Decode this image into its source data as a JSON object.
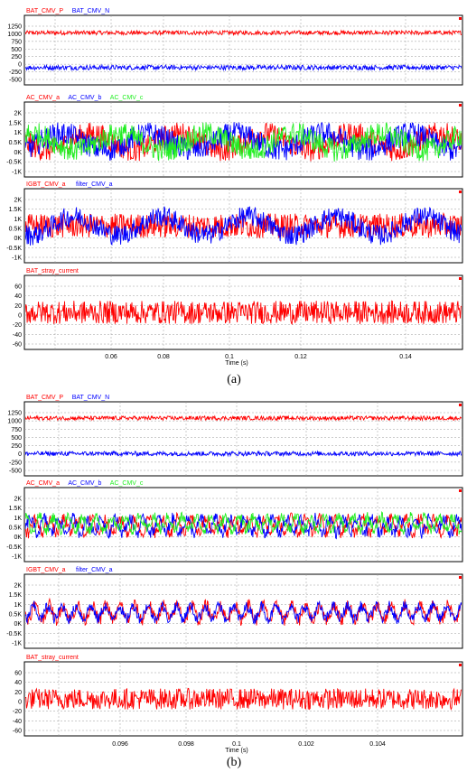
{
  "colors": {
    "red": "#ff0000",
    "blue": "#0000ff",
    "green": "#22ee22"
  },
  "figures": [
    {
      "caption": "(a)",
      "x_label": "Time (s)",
      "x_ticks": [
        "0.06",
        "0.08",
        "0.1",
        "0.12",
        "0.14"
      ]
    },
    {
      "caption": "(b)",
      "x_label": "Time (s)",
      "x_ticks": [
        "0.096",
        "0.098",
        "0.1",
        "0.102",
        "0.104"
      ]
    }
  ],
  "chart_data": [
    {
      "type": "line",
      "figure": "(a)",
      "panel": 1,
      "xlim": [
        0.05,
        0.15
      ],
      "ylim": [
        -500,
        1500
      ],
      "y_ticks": [
        "1250",
        "1000",
        "750",
        "500",
        "250",
        "0",
        "-250",
        "-500"
      ],
      "series": [
        {
          "name": "BAT_CMV_P",
          "color": "red",
          "center": 1000,
          "amplitude": 60,
          "envelope_amp": 0,
          "period": 0.02
        },
        {
          "name": "BAT_CMV_N",
          "color": "blue",
          "center": 0,
          "amplitude": 70,
          "envelope_amp": 0,
          "period": 0.02
        }
      ]
    },
    {
      "type": "line",
      "figure": "(a)",
      "panel": 2,
      "xlim": [
        0.05,
        0.15
      ],
      "ylim": [
        -1000,
        2200
      ],
      "y_ticks": [
        "2K",
        "1.5K",
        "1K",
        "0.5K",
        "0K",
        "-0.5K",
        "-1K"
      ],
      "series": [
        {
          "name": "AC_CMV_a",
          "color": "red",
          "center": 500,
          "amplitude": 500,
          "envelope_amp": 350,
          "period": 0.02,
          "phase": 0
        },
        {
          "name": "AC_CMV_b",
          "color": "blue",
          "center": 500,
          "amplitude": 500,
          "envelope_amp": 350,
          "period": 0.02,
          "phase": 2.094
        },
        {
          "name": "AC_CMV_c",
          "color": "green",
          "center": 500,
          "amplitude": 500,
          "envelope_amp": 350,
          "period": 0.02,
          "phase": 4.189
        }
      ]
    },
    {
      "type": "line",
      "figure": "(a)",
      "panel": 3,
      "xlim": [
        0.05,
        0.15
      ],
      "ylim": [
        -1000,
        2000
      ],
      "y_ticks": [
        "2K",
        "1.5K",
        "1K",
        "0.5K",
        "0K",
        "-0.5K",
        "-1K"
      ],
      "series": [
        {
          "name": "IGBT_CMV_a",
          "color": "red",
          "center": 500,
          "amplitude": 500,
          "envelope_amp": 0,
          "period": 0.02
        },
        {
          "name": "filter_CMV_a",
          "color": "blue",
          "center": 500,
          "amplitude": 420,
          "envelope_amp": 380,
          "period": 0.02,
          "phase": 1.2
        }
      ]
    },
    {
      "type": "line",
      "figure": "(a)",
      "panel": 4,
      "xlim": [
        0.05,
        0.15
      ],
      "ylim": [
        -70,
        70
      ],
      "y_ticks": [
        "60",
        "40",
        "20",
        "0",
        "-20",
        "-40",
        "-60"
      ],
      "series": [
        {
          "name": "BAT_stray_current",
          "color": "red",
          "center": 0,
          "amplitude": 22,
          "envelope_amp": 0,
          "period": 0.02
        }
      ]
    },
    {
      "type": "line",
      "figure": "(b)",
      "panel": 1,
      "xlim": [
        0.0949,
        0.105
      ],
      "ylim": [
        -600,
        1400
      ],
      "y_ticks": [
        "1250",
        "1000",
        "750",
        "500",
        "250",
        "0",
        "-250",
        "-500"
      ],
      "series": [
        {
          "name": "BAT_CMV_P",
          "color": "red",
          "center": 960,
          "amplitude": 55,
          "envelope_amp": 0,
          "period": 0.002
        },
        {
          "name": "BAT_CMV_N",
          "color": "blue",
          "center": 0,
          "amplitude": 60,
          "envelope_amp": 0,
          "period": 0.002
        }
      ]
    },
    {
      "type": "line",
      "figure": "(b)",
      "panel": 2,
      "xlim": [
        0.0949,
        0.105
      ],
      "ylim": [
        -1000,
        2100
      ],
      "y_ticks": [
        "2K",
        "1.5K",
        "1K",
        "0.5K",
        "0K",
        "-0.5K",
        "-1K"
      ],
      "series": [
        {
          "name": "AC_CMV_a",
          "color": "red",
          "center": 500,
          "amplitude": 500,
          "envelope_amp": 0,
          "period": 0.00033,
          "phase": 0
        },
        {
          "name": "AC_CMV_b",
          "color": "blue",
          "center": 500,
          "amplitude": 500,
          "envelope_amp": 0,
          "period": 0.00033,
          "phase": 2.094
        },
        {
          "name": "AC_CMV_c",
          "color": "green",
          "center": 600,
          "amplitude": 450,
          "envelope_amp": 0,
          "period": 0.00033,
          "phase": 4.189
        }
      ]
    },
    {
      "type": "line",
      "figure": "(b)",
      "panel": 3,
      "xlim": [
        0.0949,
        0.105
      ],
      "ylim": [
        -1000,
        2100
      ],
      "y_ticks": [
        "2K",
        "1.5K",
        "1K",
        "0.5K",
        "0K",
        "-0.5K",
        "-1K"
      ],
      "series": [
        {
          "name": "IGBT_CMV_a",
          "color": "red",
          "center": 500,
          "amplitude": 520,
          "envelope_amp": 0,
          "period": 0.00033
        },
        {
          "name": "filter_CMV_a",
          "color": "blue",
          "center": 500,
          "amplitude": 450,
          "envelope_amp": 0,
          "period": 0.00033,
          "phase": 0.6
        }
      ]
    },
    {
      "type": "line",
      "figure": "(b)",
      "panel": 4,
      "xlim": [
        0.0949,
        0.105
      ],
      "ylim": [
        -70,
        70
      ],
      "y_ticks": [
        "60",
        "40",
        "20",
        "0",
        "-20",
        "-40",
        "-60"
      ],
      "series": [
        {
          "name": "BAT_stray_current",
          "color": "red",
          "center": 0,
          "amplitude": 20,
          "envelope_amp": 0,
          "period": 0.002
        }
      ]
    }
  ]
}
